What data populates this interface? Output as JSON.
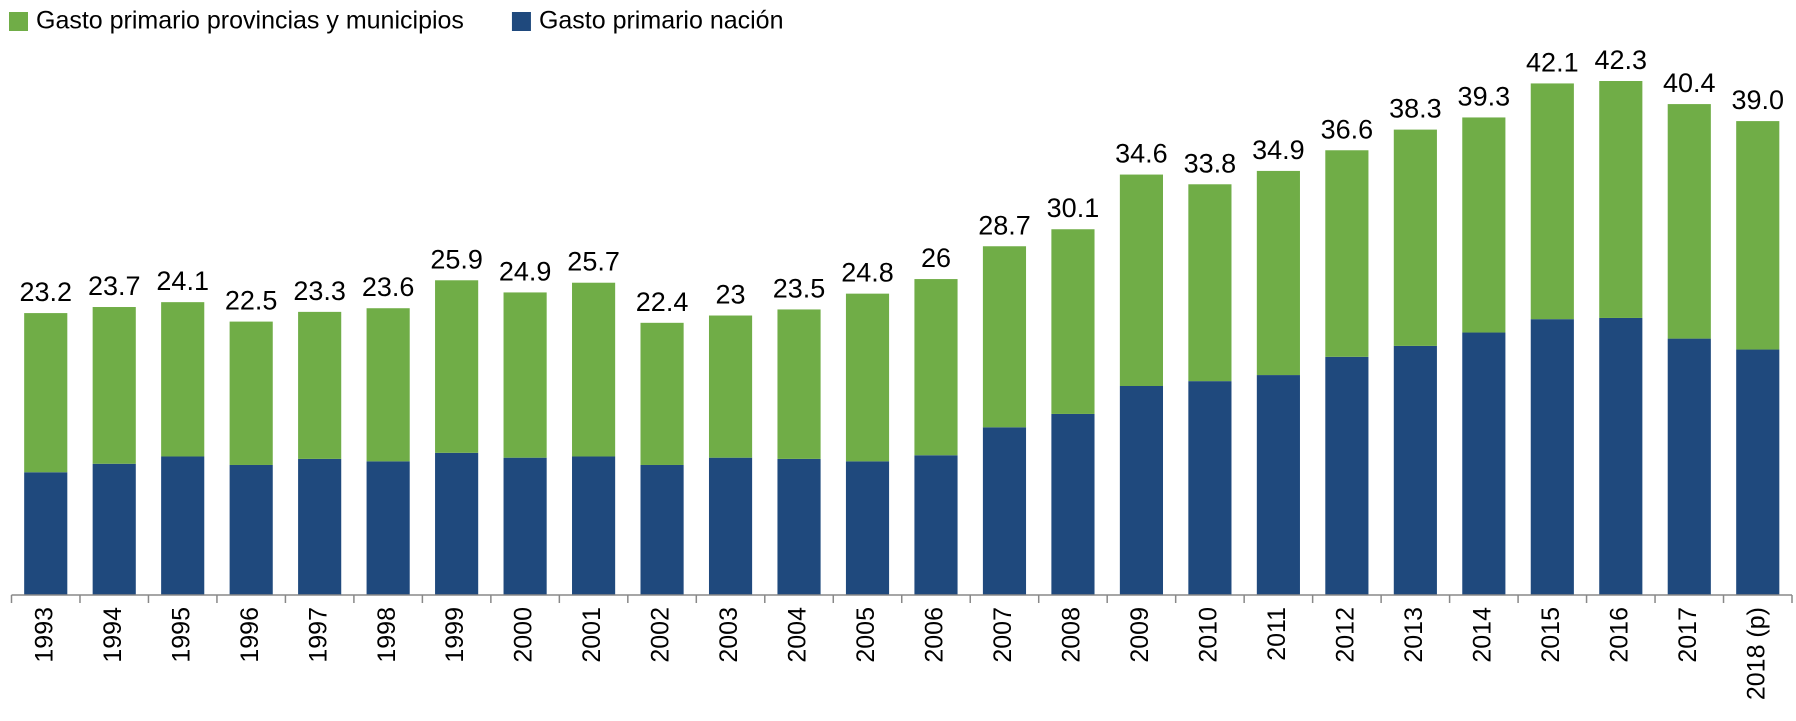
{
  "chart_data": {
    "type": "stacked_bar",
    "categories": [
      "1993",
      "1994",
      "1995",
      "1996",
      "1997",
      "1998",
      "1999",
      "2000",
      "2001",
      "2002",
      "2003",
      "2004",
      "2005",
      "2006",
      "2007",
      "2008",
      "2009",
      "2010",
      "2011",
      "2012",
      "2013",
      "2014",
      "2015",
      "2016",
      "2017",
      "2018 (p)"
    ],
    "series": [
      {
        "name": "Gasto primario provincias y municipios",
        "color": "#70ad47",
        "values": [
          13.1,
          12.9,
          12.7,
          11.8,
          12.1,
          12.6,
          14.2,
          13.6,
          14.3,
          11.7,
          11.7,
          12.3,
          13.8,
          14.5,
          14.9,
          15.2,
          17.4,
          16.2,
          16.8,
          17.0,
          17.8,
          17.7,
          19.4,
          19.5,
          19.3,
          18.8
        ]
      },
      {
        "name": "Gasto primario nación",
        "color": "#1f497d",
        "values": [
          10.1,
          10.8,
          11.4,
          10.7,
          11.2,
          11.0,
          11.7,
          11.3,
          11.4,
          10.7,
          11.3,
          11.2,
          11.0,
          11.5,
          13.8,
          14.9,
          17.2,
          17.6,
          18.1,
          19.6,
          20.5,
          21.6,
          22.7,
          22.8,
          21.1,
          20.2
        ]
      }
    ],
    "totals": [
      23.2,
      23.7,
      24.1,
      22.5,
      23.3,
      23.6,
      25.9,
      24.9,
      25.7,
      22.4,
      23,
      23.5,
      24.8,
      26,
      28.7,
      30.1,
      34.6,
      33.8,
      34.9,
      36.6,
      38.3,
      39.3,
      42.1,
      42.3,
      40.4,
      39.0
    ],
    "total_labels": [
      "23.2",
      "23.7",
      "24.1",
      "22.5",
      "23.3",
      "23.6",
      "25.9",
      "24.9",
      "25.7",
      "22.4",
      "23",
      "23.5",
      "24.8",
      "26",
      "28.7",
      "30.1",
      "34.6",
      "33.8",
      "34.9",
      "36.6",
      "38.3",
      "39.3",
      "42.1",
      "42.3",
      "40.4",
      "39.0"
    ]
  }
}
